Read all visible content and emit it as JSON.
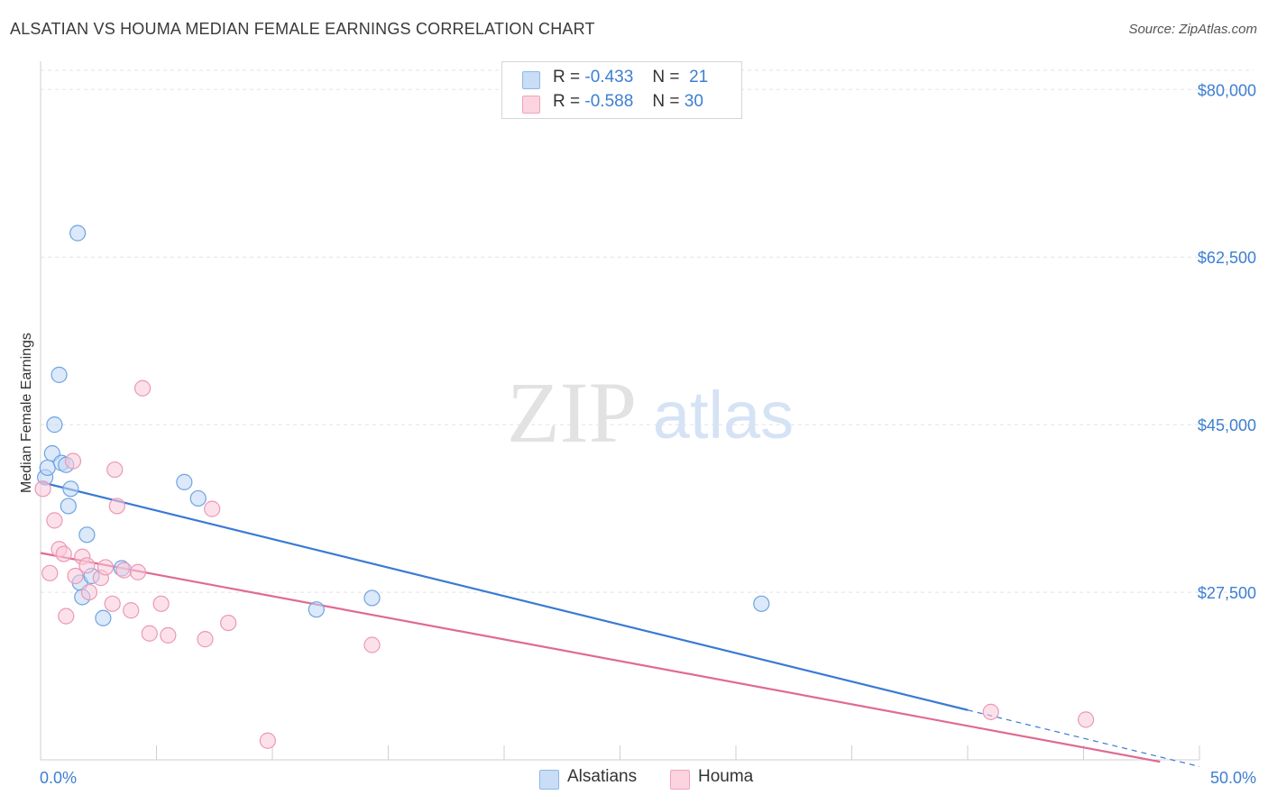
{
  "title": "ALSATIAN VS HOUMA MEDIAN FEMALE EARNINGS CORRELATION CHART",
  "source": "Source: ZipAtlas.com",
  "watermark": {
    "zip": "ZIP",
    "atlas": "atlas"
  },
  "legend": {
    "rows": [
      {
        "r_label": "R =",
        "r_value": "-0.433",
        "n_label": "N =",
        "n_value": "21",
        "color": "#8bb8ea",
        "fill": "#c9ddf6"
      },
      {
        "r_label": "R =",
        "r_value": "-0.588",
        "n_label": "N =",
        "n_value": "30",
        "color": "#f0a3ba",
        "fill": "#fbd4e0"
      }
    ]
  },
  "bottom_legend": {
    "alsatians": "Alsatians",
    "houma": "Houma"
  },
  "chart_data": {
    "type": "scatter",
    "title": "ALSATIAN VS HOUMA MEDIAN FEMALE EARNINGS CORRELATION CHART",
    "xlabel": "",
    "ylabel": "Median Female Earnings",
    "xlim": [
      0,
      50
    ],
    "ylim": [
      10000,
      82000
    ],
    "x_tick_labels": {
      "min": "0.0%",
      "max": "50.0%"
    },
    "y_ticks": [
      {
        "value": 80000,
        "label": "$80,000"
      },
      {
        "value": 62500,
        "label": "$62,500"
      },
      {
        "value": 45000,
        "label": "$45,000"
      },
      {
        "value": 27500,
        "label": "$27,500"
      }
    ],
    "grid": true,
    "legend_position": "top-center",
    "series": [
      {
        "name": "Alsatians",
        "color": "#3a7ad4",
        "points": [
          {
            "x": 0.2,
            "y": 39500
          },
          {
            "x": 0.3,
            "y": 40500
          },
          {
            "x": 0.5,
            "y": 42000
          },
          {
            "x": 0.6,
            "y": 45000
          },
          {
            "x": 0.8,
            "y": 50200
          },
          {
            "x": 0.9,
            "y": 41000
          },
          {
            "x": 1.1,
            "y": 40800
          },
          {
            "x": 1.2,
            "y": 36500
          },
          {
            "x": 1.3,
            "y": 38300
          },
          {
            "x": 1.6,
            "y": 65000
          },
          {
            "x": 1.7,
            "y": 28500
          },
          {
            "x": 1.8,
            "y": 27000
          },
          {
            "x": 2.0,
            "y": 33500
          },
          {
            "x": 2.2,
            "y": 29200
          },
          {
            "x": 2.7,
            "y": 24800
          },
          {
            "x": 3.5,
            "y": 30000
          },
          {
            "x": 6.2,
            "y": 39000
          },
          {
            "x": 6.8,
            "y": 37300
          },
          {
            "x": 11.9,
            "y": 25700
          },
          {
            "x": 14.3,
            "y": 26900
          },
          {
            "x": 31.1,
            "y": 26300
          }
        ],
        "trend": {
          "x0": 0,
          "y0": 39000,
          "x1": 40,
          "y1": 15200,
          "dash_to_x": 50,
          "dash_to_y": 9300
        }
      },
      {
        "name": "Houma",
        "color": "#e06a94",
        "points": [
          {
            "x": 0.1,
            "y": 38300
          },
          {
            "x": 0.4,
            "y": 29500
          },
          {
            "x": 0.6,
            "y": 35000
          },
          {
            "x": 0.8,
            "y": 32000
          },
          {
            "x": 1.0,
            "y": 31500
          },
          {
            "x": 1.1,
            "y": 25000
          },
          {
            "x": 1.4,
            "y": 41200
          },
          {
            "x": 1.5,
            "y": 29200
          },
          {
            "x": 1.8,
            "y": 31200
          },
          {
            "x": 2.0,
            "y": 30300
          },
          {
            "x": 2.1,
            "y": 27500
          },
          {
            "x": 2.6,
            "y": 29000
          },
          {
            "x": 2.8,
            "y": 30100
          },
          {
            "x": 3.1,
            "y": 26300
          },
          {
            "x": 3.2,
            "y": 40300
          },
          {
            "x": 3.3,
            "y": 36500
          },
          {
            "x": 3.6,
            "y": 29800
          },
          {
            "x": 3.9,
            "y": 25600
          },
          {
            "x": 4.2,
            "y": 29600
          },
          {
            "x": 4.4,
            "y": 48800
          },
          {
            "x": 4.7,
            "y": 23200
          },
          {
            "x": 5.2,
            "y": 26300
          },
          {
            "x": 5.5,
            "y": 23000
          },
          {
            "x": 7.1,
            "y": 22600
          },
          {
            "x": 7.4,
            "y": 36200
          },
          {
            "x": 8.1,
            "y": 24300
          },
          {
            "x": 9.8,
            "y": 12000
          },
          {
            "x": 14.3,
            "y": 22000
          },
          {
            "x": 41.0,
            "y": 15000
          },
          {
            "x": 45.1,
            "y": 14200
          }
        ],
        "trend": {
          "x0": 0,
          "y0": 31600,
          "x1": 48.3,
          "y1": 9800
        }
      }
    ]
  }
}
